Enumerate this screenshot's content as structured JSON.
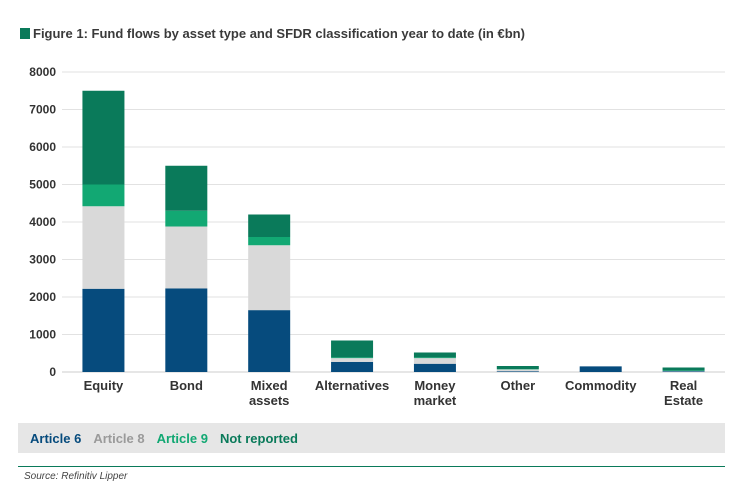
{
  "chart_data": {
    "type": "bar",
    "stacked": true,
    "title": "Figure 1: Fund flows by asset type and SFDR classification year to date (in €bn)",
    "source": "Source: Refinitiv Lipper",
    "categories": [
      "Equity",
      "Bond",
      "Mixed assets",
      "Alternatives",
      "Money market",
      "Other",
      "Commodity",
      "Real Estate"
    ],
    "series": [
      {
        "name": "Article 6",
        "color": "#064b7d",
        "values": [
          2220,
          2230,
          1650,
          270,
          220,
          20,
          150,
          20
        ]
      },
      {
        "name": "Article 8",
        "color": "#d9d9d9",
        "values": [
          2200,
          1650,
          1730,
          100,
          150,
          50,
          0,
          10
        ]
      },
      {
        "name": "Article 9",
        "color": "#12a873",
        "values": [
          580,
          420,
          220,
          20,
          20,
          10,
          0,
          10
        ]
      },
      {
        "name": "Not reported",
        "color": "#0a7a5a",
        "values": [
          2500,
          1200,
          600,
          450,
          130,
          80,
          0,
          80
        ]
      }
    ],
    "ylim": [
      0,
      8000
    ],
    "yticks": [
      0,
      1000,
      2000,
      3000,
      4000,
      5000,
      6000,
      7000,
      8000
    ],
    "grid": true,
    "legend_position": "bottom"
  }
}
